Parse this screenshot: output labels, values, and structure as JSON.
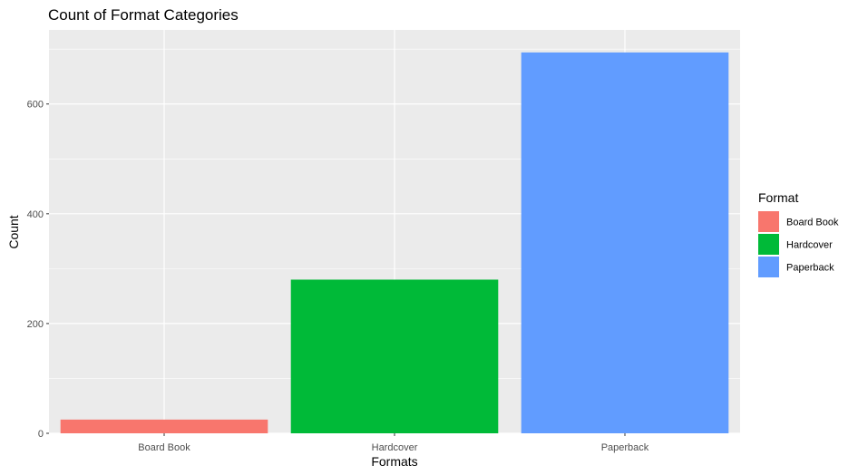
{
  "chart_data": {
    "type": "bar",
    "title": "Count of Format Categories",
    "xlabel": "Formats",
    "ylabel": "Count",
    "categories": [
      "Board Book",
      "Hardcover",
      "Paperback"
    ],
    "values": [
      25,
      280,
      694
    ],
    "colors": [
      "#F8766D",
      "#00BA38",
      "#619CFF"
    ],
    "ylim": [
      0,
      735
    ],
    "yticks": [
      0,
      200,
      400,
      600
    ],
    "grid": true,
    "panel_background": "#EBEBEB",
    "grid_color": "#FFFFFF",
    "legend": {
      "title": "Format",
      "placement": "right",
      "entries": [
        "Board Book",
        "Hardcover",
        "Paperback"
      ]
    }
  }
}
